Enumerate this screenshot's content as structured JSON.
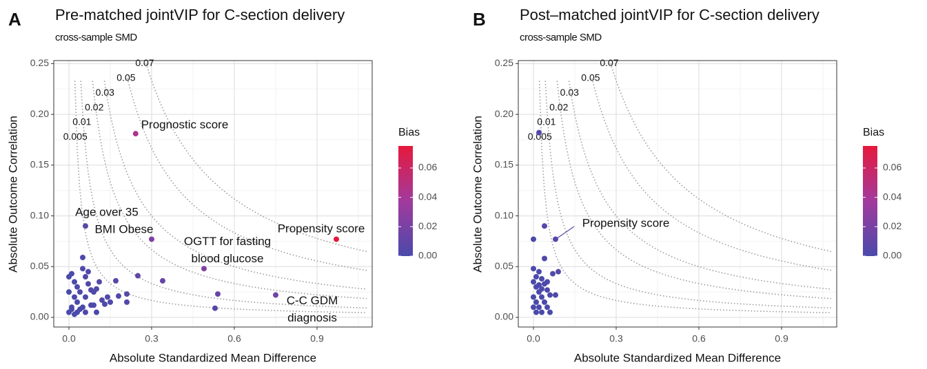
{
  "chart_data": [
    {
      "type": "scatter",
      "panel": "A",
      "title": "Pre-matched jointVIP for C-section delivery",
      "subtitle": "cross-sample SMD",
      "x_label": "Absolute Standardized Mean Difference",
      "y_label": "Absolute Outcome Correlation",
      "xlim": [
        -0.055,
        1.1
      ],
      "ylim": [
        -0.0095,
        0.253
      ],
      "xticks": [
        {
          "value": 0,
          "label": "0.0"
        },
        0.3,
        0.6,
        0.9
      ],
      "xminor": [
        0.15,
        0.45,
        0.75,
        1.05
      ],
      "yticks": [
        {
          "value": 0,
          "label": "0.00"
        },
        0.05,
        {
          "value": 0.1,
          "label": "0.10"
        },
        0.15,
        {
          "value": 0.2,
          "label": "0.20"
        },
        0.25
      ],
      "yminor": [
        0.025,
        0.075,
        0.125,
        0.175,
        0.225
      ],
      "grid": true,
      "contours": {
        "levels": [
          0.005,
          0.01,
          0.02,
          0.03,
          0.05,
          0.07
        ],
        "color": "#9a9a9a"
      },
      "colorbar": {
        "title": "Bias",
        "lim": [
          0,
          0.075
        ],
        "colors": [
          "#4a4aab",
          "#a23a9d",
          "#e6193c"
        ],
        "ticks": [
          {
            "value": 0,
            "label": "0.00"
          },
          0.02,
          0.04,
          0.06
        ]
      },
      "labeled_points": [
        {
          "label": "Prognostic score",
          "x": 0.242,
          "y": 0.181
        },
        {
          "label": "Age over 35",
          "x": 0.06,
          "y": 0.09
        },
        {
          "label": "BMI Obese",
          "x": 0.3,
          "y": 0.077
        },
        {
          "label": "OGTT for fasting\nblood glucose",
          "x": 0.49,
          "y": 0.048
        },
        {
          "label": "Propensity score",
          "x": 0.97,
          "y": 0.077
        },
        {
          "label": "C-C GDM\ndiagnosis",
          "x": 0.75,
          "y": 0.022
        }
      ],
      "points": {
        "x": [
          0.25,
          0.34,
          0.54,
          0.53,
          0.0,
          0.01,
          0.02,
          0.0,
          0.01,
          0.02,
          0.03,
          0.04,
          0.05,
          0.05,
          0.06,
          0.06,
          0.07,
          0.08,
          0.08,
          0.09,
          0.1,
          0.11,
          0.12,
          0.14,
          0.15,
          0.17,
          0.18,
          0.21,
          0.21,
          0.03,
          0.04,
          0.05,
          0.06,
          0.07,
          0.02,
          0.0,
          0.01,
          0.03,
          0.09,
          0.1,
          0.13
        ],
        "y": [
          0.041,
          0.036,
          0.023,
          0.009,
          0.005,
          0.01,
          0.003,
          0.04,
          0.043,
          0.02,
          0.03,
          0.008,
          0.059,
          0.048,
          0.04,
          0.02,
          0.033,
          0.027,
          0.012,
          0.025,
          0.005,
          0.035,
          0.017,
          0.02,
          0.015,
          0.036,
          0.021,
          0.023,
          0.015,
          0.015,
          0.025,
          0.01,
          0.005,
          0.045,
          0.035,
          0.025,
          0.008,
          0.005,
          0.012,
          0.028,
          0.013
        ]
      }
    },
    {
      "type": "scatter",
      "panel": "B",
      "title": "Post–matched jointVIP for C-section delivery",
      "subtitle": "cross-sample SMD",
      "x_label": "Absolute Standardized Mean Difference",
      "y_label": "Absolute Outcome Correlation",
      "xlim": [
        -0.055,
        1.1
      ],
      "ylim": [
        -0.0095,
        0.253
      ],
      "xticks": [
        {
          "value": 0,
          "label": "0.0"
        },
        0.3,
        0.6,
        0.9
      ],
      "xminor": [
        0.15,
        0.45,
        0.75,
        1.05
      ],
      "yticks": [
        {
          "value": 0,
          "label": "0.00"
        },
        0.05,
        {
          "value": 0.1,
          "label": "0.10"
        },
        0.15,
        {
          "value": 0.2,
          "label": "0.20"
        },
        0.25
      ],
      "yminor": [
        0.025,
        0.075,
        0.125,
        0.175,
        0.225
      ],
      "grid": true,
      "contours": {
        "levels": [
          0.005,
          0.01,
          0.02,
          0.03,
          0.05,
          0.07
        ],
        "color": "#9a9a9a"
      },
      "colorbar": {
        "title": "Bias",
        "lim": [
          0,
          0.075
        ],
        "colors": [
          "#4a4aab",
          "#a23a9d",
          "#e6193c"
        ],
        "ticks": [
          {
            "value": 0,
            "label": "0.00"
          },
          0.02,
          0.04,
          0.06
        ]
      },
      "labeled_points": [
        {
          "label": "Propensity score",
          "x": 0.08,
          "y": 0.077
        }
      ],
      "points": {
        "x": [
          0.0,
          0.01,
          0.0,
          0.01,
          0.02,
          0.03,
          0.02,
          0.03,
          0.04,
          0.04,
          0.05,
          0.05,
          0.06,
          0.06,
          0.07,
          0.09,
          0.08,
          0.0,
          0.01,
          0.02,
          0.03,
          0.0,
          0.01,
          0.03,
          0.04,
          0.02,
          0.05,
          0.0,
          0.04,
          0.02
        ],
        "y": [
          0.048,
          0.04,
          0.035,
          0.03,
          0.025,
          0.038,
          0.045,
          0.02,
          0.033,
          0.015,
          0.027,
          0.01,
          0.022,
          0.005,
          0.043,
          0.045,
          0.022,
          0.01,
          0.005,
          0.01,
          0.005,
          0.02,
          0.015,
          0.028,
          0.058,
          0.032,
          0.035,
          0.077,
          0.09,
          0.182
        ]
      }
    }
  ]
}
